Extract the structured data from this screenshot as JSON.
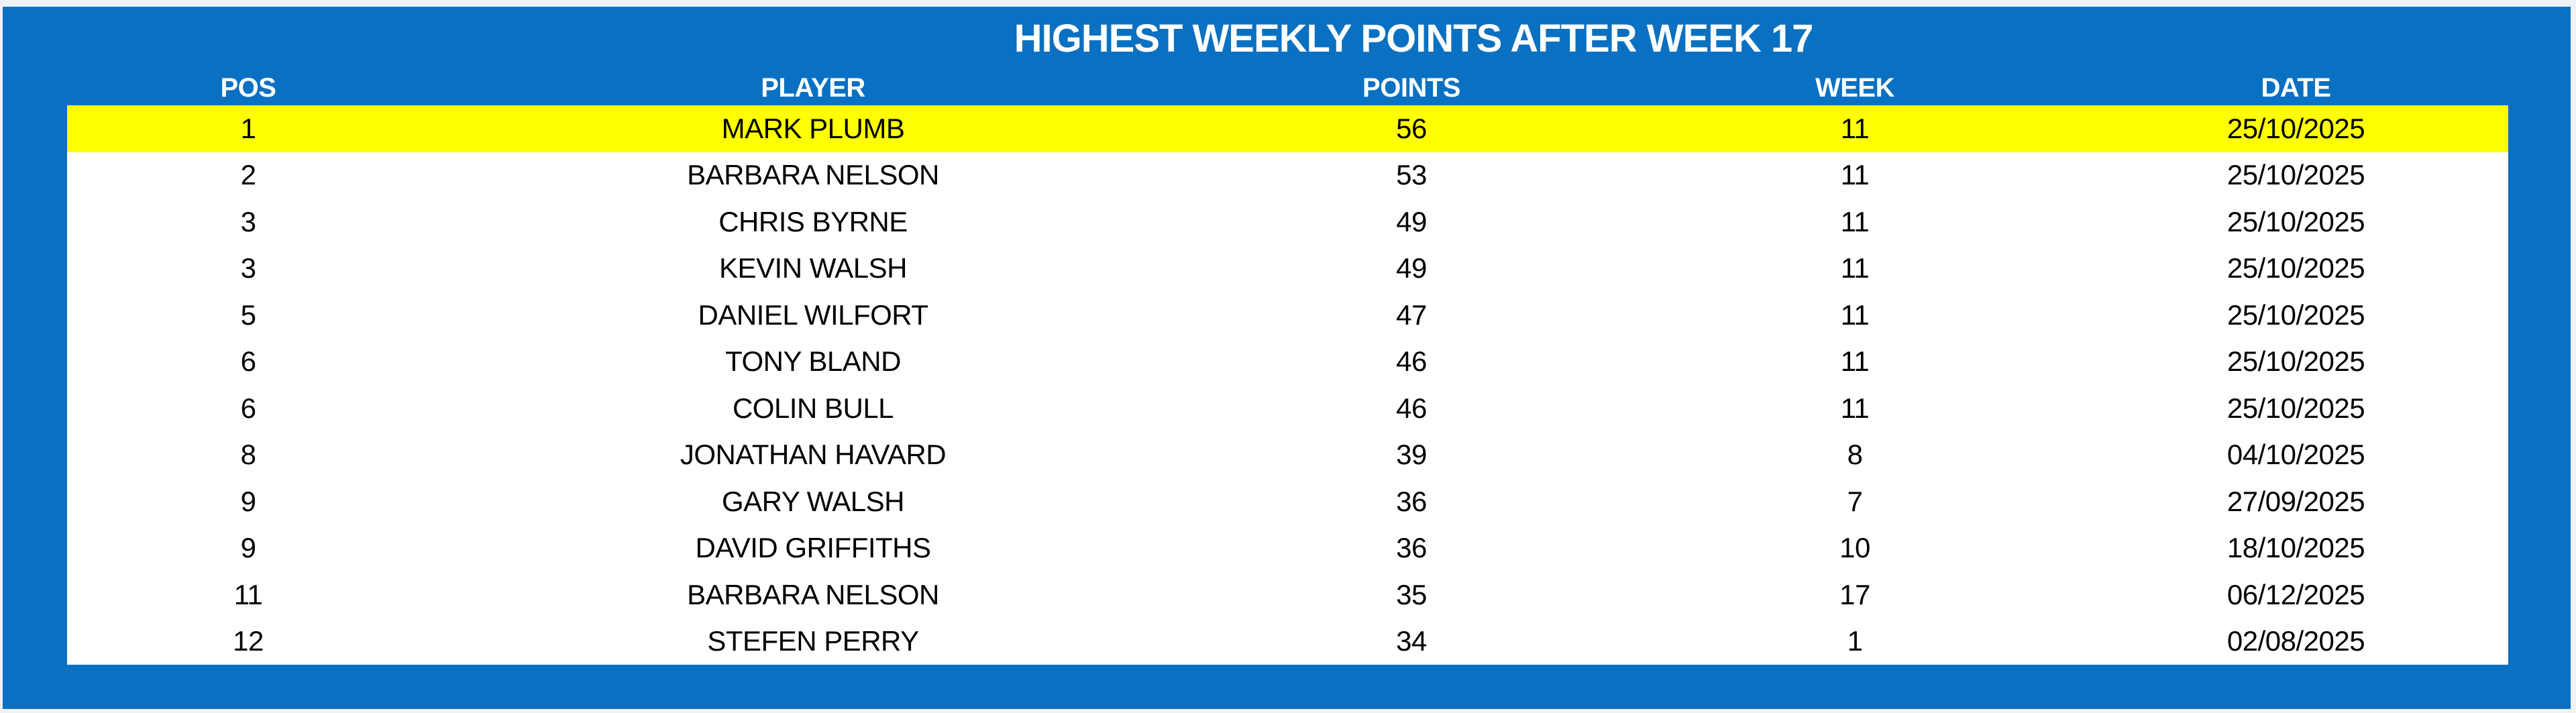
{
  "title": "HIGHEST WEEKLY POINTS AFTER WEEK 17",
  "columns": [
    "POS",
    "PLAYER",
    "POINTS",
    "WEEK",
    "DATE"
  ],
  "highlight_row_index": 0,
  "rows": [
    {
      "pos": "1",
      "player": "MARK PLUMB",
      "points": "56",
      "week": "11",
      "date": "25/10/2025"
    },
    {
      "pos": "2",
      "player": "BARBARA NELSON",
      "points": "53",
      "week": "11",
      "date": "25/10/2025"
    },
    {
      "pos": "3",
      "player": "CHRIS BYRNE",
      "points": "49",
      "week": "11",
      "date": "25/10/2025"
    },
    {
      "pos": "3",
      "player": "KEVIN WALSH",
      "points": "49",
      "week": "11",
      "date": "25/10/2025"
    },
    {
      "pos": "5",
      "player": "DANIEL WILFORT",
      "points": "47",
      "week": "11",
      "date": "25/10/2025"
    },
    {
      "pos": "6",
      "player": "TONY BLAND",
      "points": "46",
      "week": "11",
      "date": "25/10/2025"
    },
    {
      "pos": "6",
      "player": "COLIN BULL",
      "points": "46",
      "week": "11",
      "date": "25/10/2025"
    },
    {
      "pos": "8",
      "player": "JONATHAN HAVARD",
      "points": "39",
      "week": "8",
      "date": "04/10/2025"
    },
    {
      "pos": "9",
      "player": "GARY WALSH",
      "points": "36",
      "week": "7",
      "date": "27/09/2025"
    },
    {
      "pos": "9",
      "player": "DAVID GRIFFITHS",
      "points": "36",
      "week": "10",
      "date": "18/10/2025"
    },
    {
      "pos": "11",
      "player": "BARBARA NELSON",
      "points": "35",
      "week": "17",
      "date": "06/12/2025"
    },
    {
      "pos": "12",
      "player": "STEFEN PERRY",
      "points": "34",
      "week": "1",
      "date": "02/08/2025"
    }
  ],
  "colors": {
    "panel_blue": "#0a70c1",
    "highlight_yellow": "#ffff00",
    "row_white": "#ffffff",
    "header_text": "#ffffff",
    "body_text": "#000000",
    "page_margin": "#eef2f6"
  }
}
